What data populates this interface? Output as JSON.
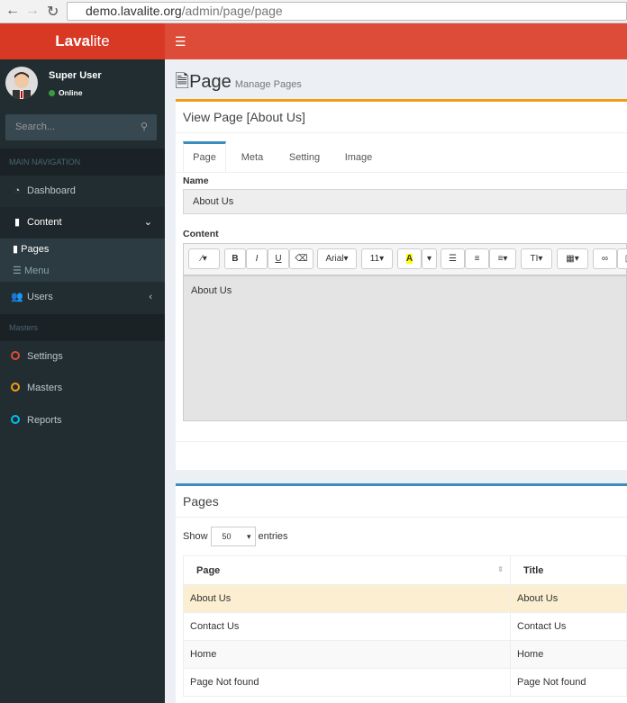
{
  "browser": {
    "url_host": "demo.lavalite.org",
    "url_path": "/admin/page/page"
  },
  "brand": {
    "bold": "Lava",
    "light": "lite"
  },
  "user": {
    "name": "Super User",
    "status": "Online"
  },
  "search": {
    "placeholder": "Search..."
  },
  "sidebar": {
    "header_main": "MAIN NAVIGATION",
    "header_masters": "Masters",
    "items": [
      {
        "label": "Dashboard",
        "icon": "dashboard-icon"
      },
      {
        "label": "Content",
        "icon": "book-icon"
      },
      {
        "label": "Users",
        "icon": "users-icon"
      },
      {
        "label": "Settings",
        "icon": "circle-icon",
        "color": "#dd4b39"
      },
      {
        "label": "Masters",
        "icon": "circle-icon",
        "color": "#f39c12"
      },
      {
        "label": "Reports",
        "icon": "circle-icon",
        "color": "#00c0ef"
      }
    ],
    "sub_items": [
      {
        "label": "Pages"
      },
      {
        "label": "Menu"
      }
    ]
  },
  "page": {
    "title": "Page",
    "subtitle": "Manage Pages"
  },
  "view_box": {
    "title": "View Page [About Us]",
    "tabs": [
      "Page",
      "Meta",
      "Setting",
      "Image"
    ],
    "name_label": "Name",
    "name_value": "About Us",
    "content_label": "Content",
    "content_value": "About Us",
    "toolbar": {
      "font": "Arial",
      "size": "11",
      "color_letter": "A"
    }
  },
  "list_box": {
    "title": "Pages",
    "show": "Show",
    "entries": "entries",
    "page_length": "50",
    "columns": [
      "Page",
      "Title"
    ],
    "rows": [
      [
        "About Us",
        "About Us"
      ],
      [
        "Contact Us",
        "Contact Us"
      ],
      [
        "Home",
        "Home"
      ],
      [
        "Page Not found",
        "Page Not found"
      ]
    ]
  },
  "colors": {
    "header": "#dd4b39",
    "logo": "#d73925",
    "sidebar": "#222d32",
    "warning": "#f39c12",
    "primary": "#3c8dbc"
  }
}
